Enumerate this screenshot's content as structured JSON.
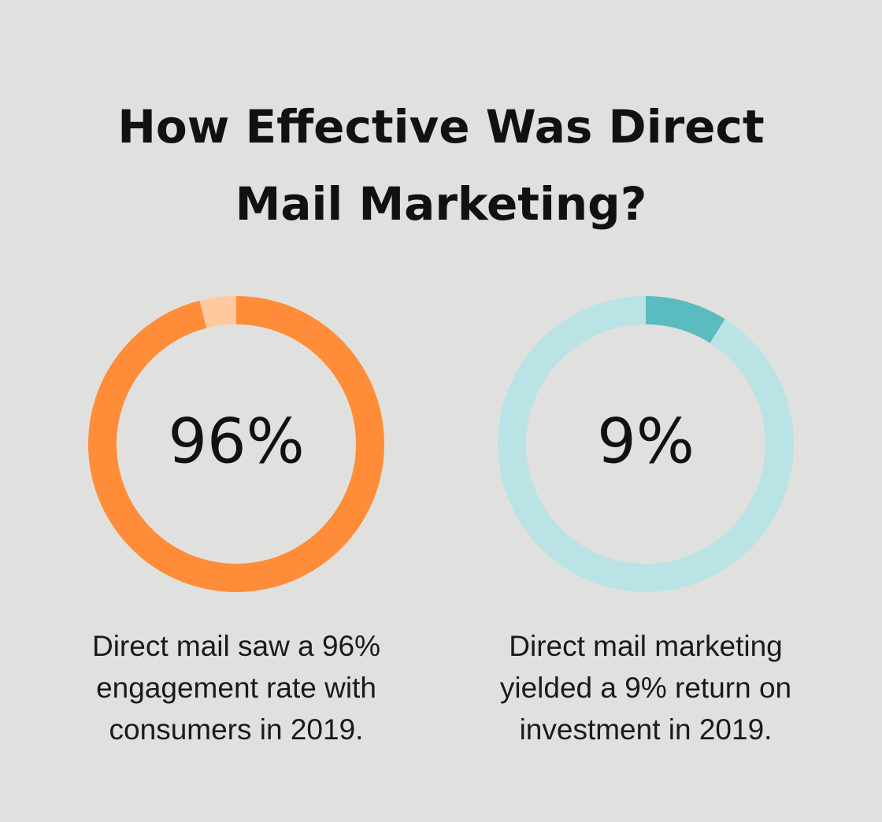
{
  "title": "How Effective Was Direct Mail Marketing?",
  "chart_data": [
    {
      "type": "donut",
      "values": [
        96
      ],
      "value_labels": [
        "96%"
      ],
      "ylim": [
        0,
        100
      ],
      "caption": "Direct mail saw a 96% engagement rate with consumers in 2019.",
      "color": "#ff8c38",
      "track_color": "#ffc9a0"
    },
    {
      "type": "donut",
      "values": [
        9
      ],
      "value_labels": [
        "9%"
      ],
      "ylim": [
        0,
        100
      ],
      "caption": "Direct mail marketing yielded a 9% return on investment in 2019.",
      "color": "#5bbcbf",
      "track_color": "#b9e3e5"
    }
  ]
}
